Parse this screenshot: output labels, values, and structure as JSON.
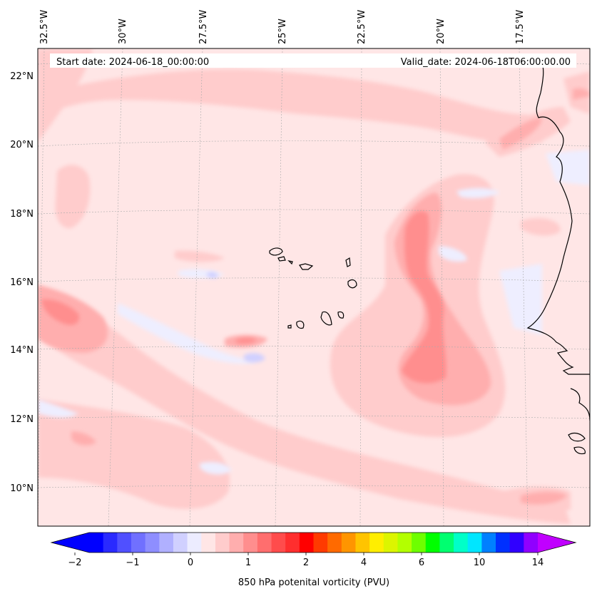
{
  "map": {
    "start_date": "Start date: 2024-06-18_00:00:00",
    "valid_date": "Valid_date: 2024-06-18T06:00:00.00",
    "longitude_labels": [
      "32.5°W",
      "30°W",
      "27.5°W",
      "25°W",
      "22.5°W",
      "20°W",
      "17.5°W"
    ],
    "latitude_labels": [
      "22°N",
      "20°N",
      "18°N",
      "16°N",
      "14°N",
      "12°N",
      "10°N"
    ]
  },
  "colorbar": {
    "label": "850 hPa potenital vorticity (PVU)",
    "tick_labels": [
      "−2",
      "−1",
      "0",
      "1",
      "2",
      "4",
      "6",
      "10",
      "14"
    ],
    "colors": [
      "#0000ff",
      "#2a2aff",
      "#5050ff",
      "#7070ff",
      "#8e8eff",
      "#b0b0ff",
      "#d0d0ff",
      "#ececff",
      "#ffe6e6",
      "#ffcccc",
      "#ffaeae",
      "#ff8e8e",
      "#ff6e6e",
      "#ff4c4c",
      "#ff2e2e",
      "#ff0000",
      "#ff3a00",
      "#ff6a00",
      "#ff9500",
      "#ffc400",
      "#ffee00",
      "#dcf500",
      "#b3ff00",
      "#6eff00",
      "#00ff00",
      "#00ff70",
      "#00ffc8",
      "#00e6ff",
      "#0080ff",
      "#0030ff",
      "#3000ff",
      "#9000ff"
    ],
    "under_color": "#0000ff",
    "over_color": "#c000ff"
  }
}
